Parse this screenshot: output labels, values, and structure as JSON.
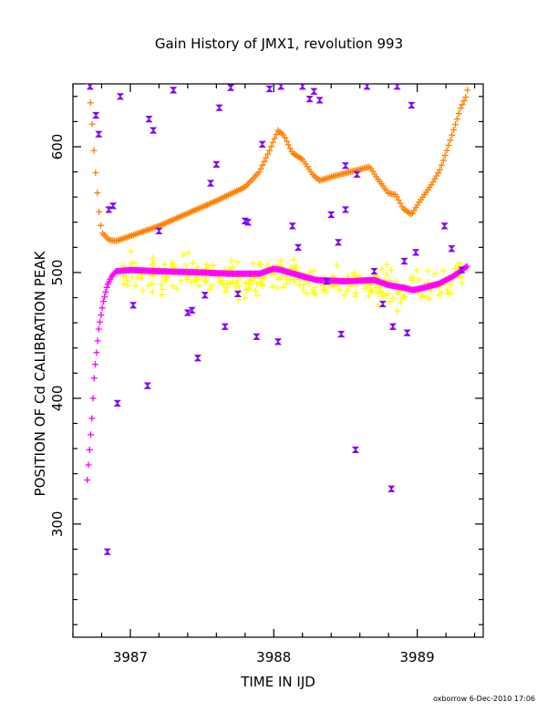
{
  "chart_data": {
    "type": "scatter",
    "title": "Gain History of JMX1, revolution 993",
    "xlabel": "TIME IN IJD",
    "ylabel": "POSITION OF Cd CALIBRATION PEAK",
    "credit": "oxborrow   6-Dec-2010 17:06",
    "xlim": [
      3986.6,
      3989.46
    ],
    "ylim": [
      210,
      650
    ],
    "x_ticks": [
      3987,
      3988,
      3989
    ],
    "x_tick_labels": [
      "3987",
      "3988",
      "3989"
    ],
    "x_minor_step": 0.2,
    "y_ticks": [
      300,
      400,
      500,
      600
    ],
    "y_tick_labels": [
      "300",
      "400",
      "500",
      "600"
    ],
    "y_minor_step": 20,
    "grid": false,
    "legend": "none",
    "series": [
      {
        "marker": "plus",
        "color": "#ff8000",
        "generator": "curve",
        "step": 0.012,
        "points": [
          [
            3986.71,
            650
          ],
          [
            3986.73,
            625
          ],
          [
            3986.75,
            590
          ],
          [
            3986.78,
            550
          ],
          [
            3986.8,
            532
          ],
          [
            3986.85,
            526
          ],
          [
            3986.9,
            525
          ],
          [
            3987.0,
            529
          ],
          [
            3987.2,
            537
          ],
          [
            3987.4,
            547
          ],
          [
            3987.6,
            557
          ],
          [
            3987.8,
            568
          ],
          [
            3987.9,
            580
          ],
          [
            3987.97,
            597
          ],
          [
            3988.03,
            613
          ],
          [
            3988.07,
            609
          ],
          [
            3988.13,
            595
          ],
          [
            3988.2,
            590
          ],
          [
            3988.27,
            578
          ],
          [
            3988.32,
            573
          ],
          [
            3988.4,
            576
          ],
          [
            3988.5,
            579
          ],
          [
            3988.6,
            582
          ],
          [
            3988.67,
            584
          ],
          [
            3988.72,
            575
          ],
          [
            3988.8,
            563
          ],
          [
            3988.85,
            562
          ],
          [
            3988.9,
            551
          ],
          [
            3988.96,
            546
          ],
          [
            3989.02,
            557
          ],
          [
            3989.1,
            570
          ],
          [
            3989.16,
            582
          ],
          [
            3989.2,
            595
          ],
          [
            3989.25,
            612
          ],
          [
            3989.3,
            630
          ],
          [
            3989.34,
            640
          ],
          [
            3989.36,
            650
          ]
        ]
      },
      {
        "marker": "plus",
        "color": "#ff00ff",
        "generator": "curve",
        "step": 0.008,
        "points": [
          [
            3986.7,
            335
          ],
          [
            3986.71,
            350
          ],
          [
            3986.73,
            380
          ],
          [
            3986.75,
            420
          ],
          [
            3986.78,
            455
          ],
          [
            3986.81,
            476
          ],
          [
            3986.84,
            490
          ],
          [
            3986.87,
            497
          ],
          [
            3986.9,
            501
          ],
          [
            3987.0,
            502
          ],
          [
            3987.2,
            501
          ],
          [
            3987.5,
            500
          ],
          [
            3987.7,
            499
          ],
          [
            3987.9,
            499
          ],
          [
            3988.0,
            503
          ],
          [
            3988.05,
            502
          ],
          [
            3988.2,
            497
          ],
          [
            3988.3,
            494
          ],
          [
            3988.5,
            493
          ],
          [
            3988.7,
            494
          ],
          [
            3988.8,
            490
          ],
          [
            3988.9,
            488
          ],
          [
            3988.97,
            486
          ],
          [
            3989.05,
            488
          ],
          [
            3989.15,
            491
          ],
          [
            3989.25,
            497
          ],
          [
            3989.35,
            505
          ]
        ]
      },
      {
        "marker": "plus",
        "color": "#ffff00",
        "generator": "scatter",
        "seed": 42,
        "xrange": [
          3986.95,
          3989.32
        ],
        "n": 300,
        "spread": 14,
        "follows_series": 1,
        "offset": -2
      },
      {
        "marker": "bowtie",
        "color": "#7f00ff",
        "generator": "list",
        "points": [
          [
            3986.72,
            648
          ],
          [
            3986.76,
            625
          ],
          [
            3986.78,
            610
          ],
          [
            3986.84,
            278
          ],
          [
            3986.85,
            550
          ],
          [
            3986.88,
            553
          ],
          [
            3986.91,
            396
          ],
          [
            3986.93,
            640
          ],
          [
            3987.02,
            474
          ],
          [
            3987.12,
            410
          ],
          [
            3987.13,
            622
          ],
          [
            3987.16,
            613
          ],
          [
            3987.2,
            533
          ],
          [
            3987.3,
            645
          ],
          [
            3987.4,
            468
          ],
          [
            3987.43,
            470
          ],
          [
            3987.47,
            432
          ],
          [
            3987.52,
            482
          ],
          [
            3987.56,
            571
          ],
          [
            3987.6,
            586
          ],
          [
            3987.62,
            631
          ],
          [
            3987.66,
            457
          ],
          [
            3987.7,
            647
          ],
          [
            3987.75,
            483
          ],
          [
            3987.8,
            541
          ],
          [
            3987.82,
            540
          ],
          [
            3987.88,
            449
          ],
          [
            3987.92,
            602
          ],
          [
            3987.97,
            646
          ],
          [
            3988.03,
            445
          ],
          [
            3988.05,
            648
          ],
          [
            3988.13,
            537
          ],
          [
            3988.17,
            520
          ],
          [
            3988.2,
            648
          ],
          [
            3988.25,
            638
          ],
          [
            3988.28,
            644
          ],
          [
            3988.32,
            637
          ],
          [
            3988.37,
            493
          ],
          [
            3988.4,
            546
          ],
          [
            3988.45,
            524
          ],
          [
            3988.47,
            451
          ],
          [
            3988.5,
            585
          ],
          [
            3988.5,
            550
          ],
          [
            3988.57,
            359
          ],
          [
            3988.58,
            578
          ],
          [
            3988.65,
            648
          ],
          [
            3988.7,
            501
          ],
          [
            3988.76,
            475
          ],
          [
            3988.82,
            328
          ],
          [
            3988.83,
            457
          ],
          [
            3988.86,
            648
          ],
          [
            3988.91,
            509
          ],
          [
            3988.93,
            452
          ],
          [
            3988.96,
            633
          ],
          [
            3988.99,
            516
          ],
          [
            3989.19,
            537
          ],
          [
            3989.24,
            519
          ],
          [
            3989.31,
            502
          ]
        ]
      }
    ]
  }
}
